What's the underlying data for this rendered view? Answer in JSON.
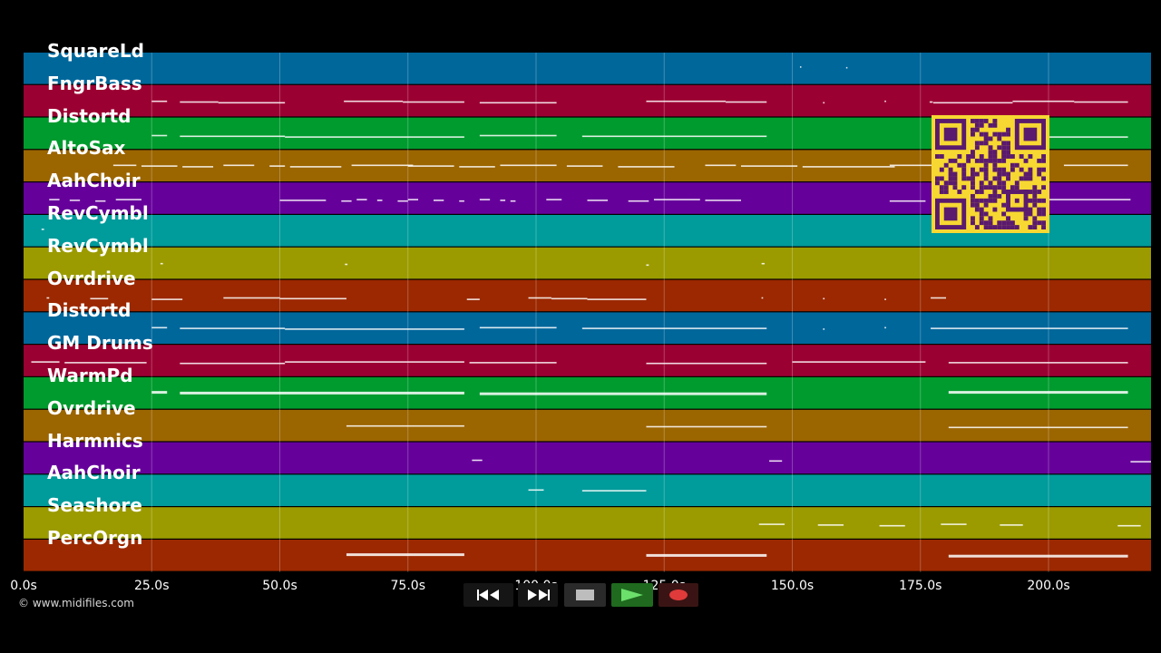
{
  "tracks": [
    {
      "name": "SquareLd",
      "color": "#00679b"
    },
    {
      "name": "FngrBass",
      "color": "#9b0032"
    },
    {
      "name": "Distortd",
      "color": "#009b2e"
    },
    {
      "name": "AltoSax",
      "color": "#9b6500"
    },
    {
      "name": "AahChoir",
      "color": "#66009b"
    },
    {
      "name": "RevCymbl",
      "color": "#009b9b"
    },
    {
      "name": "RevCymbl",
      "color": "#9b9b00"
    },
    {
      "name": "Ovrdrive",
      "color": "#9b2800"
    },
    {
      "name": "Distortd",
      "color": "#00679b"
    },
    {
      "name": "GM Drums",
      "color": "#9b0032"
    },
    {
      "name": "WarmPd",
      "color": "#009b2e"
    },
    {
      "name": "Ovrdrive",
      "color": "#9b6500"
    },
    {
      "name": "Harmnics",
      "color": "#66009b"
    },
    {
      "name": "AahChoir",
      "color": "#009b9b"
    },
    {
      "name": "Seashore",
      "color": "#9b9b00"
    },
    {
      "name": "PercOrgn",
      "color": "#9b2800"
    }
  ],
  "time_axis": {
    "ticks": [
      {
        "seconds": 0,
        "label": "0.0s"
      },
      {
        "seconds": 25,
        "label": "25.0s"
      },
      {
        "seconds": 50,
        "label": "50.0s"
      },
      {
        "seconds": 75,
        "label": "75.0s"
      },
      {
        "seconds": 100,
        "label": "100.0s"
      },
      {
        "seconds": 125,
        "label": "125.0s"
      },
      {
        "seconds": 150,
        "label": "150.0s"
      },
      {
        "seconds": 175,
        "label": "175.0s"
      },
      {
        "seconds": 200,
        "label": "200.0s"
      }
    ],
    "range_seconds": [
      0,
      220
    ]
  },
  "notes": [
    {
      "track": 0,
      "segments": [
        [
          151.5,
          151.7
        ],
        [
          160.5,
          160.7
        ]
      ]
    },
    {
      "track": 1,
      "segments": [
        [
          25,
          28
        ],
        [
          30.5,
          38
        ],
        [
          38,
          51
        ],
        [
          62.5,
          74
        ],
        [
          74,
          86
        ],
        [
          89,
          104
        ],
        [
          121.5,
          137
        ],
        [
          137,
          145
        ],
        [
          156,
          156.3
        ],
        [
          168,
          168.3
        ],
        [
          176.8,
          177.4
        ],
        [
          177.5,
          193
        ],
        [
          193,
          205
        ],
        [
          205,
          215.5
        ]
      ]
    },
    {
      "track": 2,
      "segments": [
        [
          25,
          28
        ],
        [
          30.5,
          51
        ],
        [
          51,
          86
        ],
        [
          89,
          104
        ],
        [
          109,
          145
        ],
        [
          180.5,
          215.5
        ]
      ]
    },
    {
      "track": 3,
      "segments": [
        [
          17.5,
          22
        ],
        [
          23,
          30
        ],
        [
          31,
          37
        ],
        [
          39,
          45
        ],
        [
          48,
          51
        ],
        [
          52,
          62
        ],
        [
          64,
          76
        ],
        [
          75,
          84
        ],
        [
          85,
          92
        ],
        [
          93,
          104
        ],
        [
          106,
          113
        ],
        [
          116,
          127
        ],
        [
          133,
          139
        ],
        [
          140,
          151
        ],
        [
          152,
          170
        ],
        [
          169,
          180
        ],
        [
          180,
          190
        ],
        [
          192,
          200
        ],
        [
          203,
          215.5
        ]
      ]
    },
    {
      "track": 4,
      "segments": [
        [
          5,
          7
        ],
        [
          9,
          11
        ],
        [
          14,
          16
        ],
        [
          18,
          23
        ],
        [
          50,
          59
        ],
        [
          62,
          64
        ],
        [
          65,
          67
        ],
        [
          69,
          70
        ],
        [
          73,
          75
        ],
        [
          75,
          77
        ],
        [
          80,
          82
        ],
        [
          85,
          86
        ],
        [
          89,
          91
        ],
        [
          93,
          94
        ],
        [
          95,
          96
        ],
        [
          102,
          105
        ],
        [
          110,
          114
        ],
        [
          118,
          122
        ],
        [
          123,
          132
        ],
        [
          133,
          140
        ],
        [
          169,
          176
        ],
        [
          177.5,
          216
        ]
      ]
    },
    {
      "track": 5,
      "segments": [
        [
          3.5,
          4
        ]
      ]
    },
    {
      "track": 6,
      "segments": [
        [
          26.7,
          27.2
        ],
        [
          62.7,
          63.2
        ],
        [
          121.5,
          122
        ],
        [
          144,
          144.6
        ]
      ]
    },
    {
      "track": 7,
      "segments": [
        [
          4.5,
          5
        ],
        [
          13,
          16.5
        ],
        [
          25,
          31
        ],
        [
          39,
          50
        ],
        [
          50,
          63
        ],
        [
          86.5,
          89
        ],
        [
          98.5,
          103
        ],
        [
          103,
          110
        ],
        [
          110,
          121.5
        ],
        [
          144,
          144.3
        ],
        [
          156,
          156.3
        ],
        [
          168,
          168.3
        ],
        [
          177,
          180
        ]
      ]
    },
    {
      "track": 8,
      "segments": [
        [
          25,
          28
        ],
        [
          30.5,
          51
        ],
        [
          51,
          86
        ],
        [
          89,
          104
        ],
        [
          109,
          145
        ],
        [
          156,
          156.3
        ],
        [
          168,
          168.3
        ],
        [
          177,
          215.5
        ]
      ]
    },
    {
      "track": 9,
      "segments": [
        [
          1.5,
          7
        ],
        [
          8,
          24
        ],
        [
          30.5,
          51
        ],
        [
          51,
          86
        ],
        [
          87,
          104
        ],
        [
          121.5,
          145
        ],
        [
          150,
          176
        ],
        [
          180.5,
          215.5
        ]
      ]
    },
    {
      "track": 10,
      "segments": [
        [
          25,
          28
        ],
        [
          30.5,
          86
        ],
        [
          89,
          145
        ],
        [
          180.5,
          215.5
        ]
      ]
    },
    {
      "track": 11,
      "segments": [
        [
          63,
          86
        ],
        [
          121.5,
          145
        ],
        [
          180.5,
          215.5
        ]
      ]
    },
    {
      "track": 12,
      "segments": [
        [
          87.5,
          89.5
        ],
        [
          145.5,
          148
        ],
        [
          216,
          220
        ]
      ]
    },
    {
      "track": 13,
      "segments": [
        [
          98.5,
          101.5
        ],
        [
          109,
          121.5
        ]
      ]
    },
    {
      "track": 14,
      "segments": [
        [
          143.5,
          148.5
        ],
        [
          155,
          160
        ],
        [
          167,
          172
        ],
        [
          179,
          184
        ],
        [
          190.5,
          195
        ],
        [
          213.5,
          218
        ]
      ]
    },
    {
      "track": 15,
      "segments": [
        [
          63,
          86
        ],
        [
          121.5,
          145
        ],
        [
          180.5,
          215.5
        ]
      ]
    }
  ],
  "transport": {
    "rewind_icon": "rewind-icon",
    "fast_forward_icon": "fast-forward-icon",
    "stop_icon": "stop-icon",
    "play_icon": "play-icon",
    "record_icon": "record-icon"
  },
  "overlay": {
    "qr_icon": "qr-code-icon",
    "qr_color": "#f7d832"
  },
  "copyright": "© www.midifiles.com"
}
